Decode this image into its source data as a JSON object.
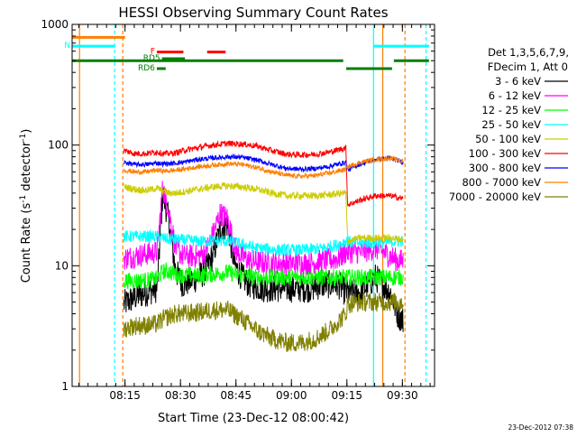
{
  "chart_data": {
    "type": "line",
    "title": "HESSI Observing Summary Count Rates",
    "xlabel": "Start Time (23-Dec-12 08:00:42)",
    "ylabel_main": "Count Rate (s",
    "ylabel_sup1": "-1",
    "ylabel_mid": " detector",
    "ylabel_sup2": "-1",
    "ylabel_end": ")",
    "y_scale": "log",
    "ylim": [
      1,
      1000
    ],
    "xlim_minutes": [
      0.0,
      98.0
    ],
    "x_ticks": [
      {
        "minute": 14.3,
        "label": "08:15"
      },
      {
        "minute": 29.3,
        "label": "08:30"
      },
      {
        "minute": 44.3,
        "label": "08:45"
      },
      {
        "minute": 59.3,
        "label": "09:00"
      },
      {
        "minute": 74.3,
        "label": "09:15"
      },
      {
        "minute": 89.3,
        "label": "09:30"
      }
    ],
    "y_ticks": [
      {
        "value": 1,
        "label": "1"
      },
      {
        "value": 10,
        "label": "10"
      },
      {
        "value": 100,
        "label": "100"
      },
      {
        "value": 1000,
        "label": "1000"
      }
    ],
    "legend": {
      "placement": "right",
      "header1": "Det 1,3,5,6,7,9,",
      "header2": "FDecim 1, Att 0"
    },
    "series": [
      {
        "name": "3 - 6 keV",
        "color": "#000000",
        "points": [
          [
            14,
            4.8
          ],
          [
            17,
            5.5
          ],
          [
            20,
            6.0
          ],
          [
            23,
            6.5
          ],
          [
            24.5,
            40
          ],
          [
            26,
            25
          ],
          [
            28,
            9
          ],
          [
            30,
            7
          ],
          [
            32,
            7.5
          ],
          [
            34,
            8
          ],
          [
            36,
            9
          ],
          [
            38,
            12
          ],
          [
            40,
            20
          ],
          [
            42,
            22
          ],
          [
            44,
            10
          ],
          [
            46,
            8
          ],
          [
            48,
            7
          ],
          [
            52,
            6.5
          ],
          [
            56,
            6.5
          ],
          [
            60,
            6.5
          ],
          [
            64,
            6.5
          ],
          [
            68,
            7
          ],
          [
            72,
            7
          ],
          [
            74,
            6
          ],
          [
            76,
            6
          ],
          [
            78,
            6
          ],
          [
            80,
            7
          ],
          [
            82,
            8
          ],
          [
            84,
            7
          ],
          [
            86,
            6
          ],
          [
            88,
            4
          ],
          [
            89.5,
            3.5
          ]
        ]
      },
      {
        "name": "6 - 12 keV",
        "color": "#ff00ff",
        "points": [
          [
            14,
            11.5
          ],
          [
            17,
            12
          ],
          [
            20,
            12.5
          ],
          [
            23,
            13
          ],
          [
            24.5,
            45
          ],
          [
            26,
            30
          ],
          [
            28,
            14
          ],
          [
            30,
            12
          ],
          [
            32,
            12
          ],
          [
            34,
            12
          ],
          [
            36,
            13
          ],
          [
            38,
            18
          ],
          [
            40,
            27
          ],
          [
            42,
            25
          ],
          [
            44,
            14
          ],
          [
            46,
            12
          ],
          [
            48,
            11
          ],
          [
            52,
            10.5
          ],
          [
            56,
            10.5
          ],
          [
            60,
            10.5
          ],
          [
            64,
            10.5
          ],
          [
            68,
            11
          ],
          [
            72,
            11.5
          ],
          [
            74,
            13
          ],
          [
            76,
            13
          ],
          [
            78,
            13
          ],
          [
            80,
            13.5
          ],
          [
            82,
            14
          ],
          [
            84,
            13
          ],
          [
            86,
            12
          ],
          [
            88,
            11
          ],
          [
            89.5,
            11
          ]
        ]
      },
      {
        "name": "12 - 25 keV",
        "color": "#00ff00",
        "points": [
          [
            14,
            7.5
          ],
          [
            17,
            7.5
          ],
          [
            20,
            7.6
          ],
          [
            23,
            7.8
          ],
          [
            24.5,
            9
          ],
          [
            26,
            9
          ],
          [
            28,
            8.5
          ],
          [
            30,
            8.3
          ],
          [
            34,
            8.3
          ],
          [
            38,
            8.5
          ],
          [
            42,
            8.8
          ],
          [
            46,
            8.3
          ],
          [
            50,
            8
          ],
          [
            56,
            8
          ],
          [
            62,
            8
          ],
          [
            68,
            8
          ],
          [
            72,
            8
          ],
          [
            74,
            8
          ],
          [
            78,
            8
          ],
          [
            82,
            8
          ],
          [
            86,
            8
          ],
          [
            89.5,
            8
          ]
        ]
      },
      {
        "name": "25 - 50 keV",
        "color": "#00ffff",
        "points": [
          [
            14,
            17.5
          ],
          [
            17,
            17.5
          ],
          [
            20,
            17.5
          ],
          [
            23,
            17.5
          ],
          [
            24.5,
            17
          ],
          [
            26,
            16.5
          ],
          [
            28,
            16.5
          ],
          [
            30,
            16.3
          ],
          [
            34,
            16
          ],
          [
            38,
            16
          ],
          [
            42,
            16
          ],
          [
            46,
            15
          ],
          [
            50,
            14
          ],
          [
            56,
            13.5
          ],
          [
            62,
            13.5
          ],
          [
            68,
            14
          ],
          [
            72,
            15
          ],
          [
            74,
            16
          ],
          [
            76,
            15.5
          ],
          [
            80,
            15.5
          ],
          [
            84,
            15.5
          ],
          [
            88,
            16
          ],
          [
            89.5,
            16
          ]
        ]
      },
      {
        "name": "50 - 100 keV",
        "color": "#cccc00",
        "points": [
          [
            14,
            45
          ],
          [
            17,
            43
          ],
          [
            20,
            42
          ],
          [
            23,
            44
          ],
          [
            24.5,
            42
          ],
          [
            26,
            40
          ],
          [
            28,
            40
          ],
          [
            30,
            41
          ],
          [
            34,
            43
          ],
          [
            38,
            45
          ],
          [
            42,
            46
          ],
          [
            46,
            45
          ],
          [
            50,
            43
          ],
          [
            54,
            40
          ],
          [
            58,
            38
          ],
          [
            62,
            38
          ],
          [
            66,
            38
          ],
          [
            70,
            39
          ],
          [
            74,
            40
          ],
          [
            74.5,
            16
          ],
          [
            78,
            17
          ],
          [
            82,
            17
          ],
          [
            86,
            17
          ],
          [
            89.5,
            16.5
          ]
        ]
      },
      {
        "name": "100 - 300 keV",
        "color": "#ff0000",
        "points": [
          [
            14,
            90
          ],
          [
            17,
            85
          ],
          [
            20,
            85
          ],
          [
            23,
            88
          ],
          [
            24.5,
            85
          ],
          [
            26,
            85
          ],
          [
            28,
            86
          ],
          [
            30,
            90
          ],
          [
            34,
            95
          ],
          [
            38,
            100
          ],
          [
            42,
            103
          ],
          [
            46,
            102
          ],
          [
            50,
            98
          ],
          [
            54,
            90
          ],
          [
            58,
            84
          ],
          [
            62,
            83
          ],
          [
            66,
            84
          ],
          [
            70,
            88
          ],
          [
            74,
            95
          ],
          [
            74.5,
            32
          ],
          [
            78,
            35
          ],
          [
            82,
            38
          ],
          [
            86,
            38
          ],
          [
            89.5,
            36
          ]
        ]
      },
      {
        "name": "300 - 800 keV",
        "color": "#0000ff",
        "points": [
          [
            14,
            72
          ],
          [
            17,
            69
          ],
          [
            20,
            69
          ],
          [
            23,
            71
          ],
          [
            24.5,
            70
          ],
          [
            26,
            70
          ],
          [
            28,
            71
          ],
          [
            30,
            72
          ],
          [
            34,
            76
          ],
          [
            38,
            78
          ],
          [
            42,
            80
          ],
          [
            46,
            79
          ],
          [
            50,
            75
          ],
          [
            54,
            69
          ],
          [
            58,
            64
          ],
          [
            62,
            63
          ],
          [
            66,
            64
          ],
          [
            70,
            67
          ],
          [
            74,
            72
          ],
          [
            74.5,
            62
          ],
          [
            78,
            70
          ],
          [
            82,
            76
          ],
          [
            86,
            78
          ],
          [
            89.5,
            72
          ]
        ]
      },
      {
        "name": "800 - 7000 keV",
        "color": "#ff7f00",
        "points": [
          [
            14,
            62
          ],
          [
            17,
            60
          ],
          [
            20,
            60
          ],
          [
            23,
            62
          ],
          [
            24.5,
            61
          ],
          [
            26,
            61
          ],
          [
            28,
            62
          ],
          [
            30,
            63
          ],
          [
            34,
            66
          ],
          [
            38,
            68
          ],
          [
            42,
            70
          ],
          [
            46,
            69
          ],
          [
            50,
            65
          ],
          [
            54,
            60
          ],
          [
            58,
            56
          ],
          [
            62,
            55
          ],
          [
            66,
            56
          ],
          [
            70,
            59
          ],
          [
            74,
            63
          ],
          [
            74.5,
            66
          ],
          [
            78,
            72
          ],
          [
            82,
            76
          ],
          [
            86,
            78
          ],
          [
            89.5,
            73
          ]
        ]
      },
      {
        "name": "7000 - 20000 keV",
        "color": "#808000",
        "points": [
          [
            14,
            3.0
          ],
          [
            17,
            3.2
          ],
          [
            20,
            3.2
          ],
          [
            23,
            3.3
          ],
          [
            24.5,
            3.6
          ],
          [
            26,
            3.8
          ],
          [
            28,
            4.0
          ],
          [
            30,
            4.0
          ],
          [
            34,
            4.1
          ],
          [
            38,
            4.3
          ],
          [
            42,
            4.3
          ],
          [
            46,
            3.6
          ],
          [
            50,
            2.9
          ],
          [
            54,
            2.5
          ],
          [
            58,
            2.3
          ],
          [
            62,
            2.3
          ],
          [
            66,
            2.5
          ],
          [
            70,
            3.0
          ],
          [
            74,
            4.0
          ],
          [
            74.5,
            4.8
          ],
          [
            78,
            5.0
          ],
          [
            82,
            5.0
          ],
          [
            86,
            5.0
          ],
          [
            89.5,
            5.0
          ]
        ]
      }
    ],
    "flags": [
      {
        "label": "",
        "color": "#ff7f00",
        "y_value": 780,
        "ranges": [
          [
            0,
            14.3
          ]
        ]
      },
      {
        "label": "N",
        "color": "#00ffff",
        "y_value": 660,
        "ranges": [
          [
            0,
            11.5
          ],
          [
            81.5,
            96.5
          ]
        ]
      },
      {
        "label": "",
        "color": "#008000",
        "y_value": 500,
        "ranges": [
          [
            0,
            73.3
          ],
          [
            87,
            96.5
          ]
        ]
      },
      {
        "label": "F",
        "color": "#ff0000",
        "y_value": 590,
        "ranges": [
          [
            22.9,
            30.1
          ],
          [
            36.5,
            41.5
          ]
        ]
      },
      {
        "label": "RD5",
        "color": "#008000",
        "y_value": 520,
        "ranges": [
          [
            24.3,
            30.5
          ]
        ]
      },
      {
        "label": "RD6",
        "color": "#008000",
        "y_value": 430,
        "ranges": [
          [
            22.9,
            25.3
          ],
          [
            74.1,
            86.5
          ]
        ]
      }
    ],
    "verticals": [
      {
        "minute": 2.0,
        "color": "#ff7f00",
        "style": "solid"
      },
      {
        "minute": 11.5,
        "color": "#00ffff",
        "style": "dashed"
      },
      {
        "minute": 13.7,
        "color": "#ff7f00",
        "style": "dashed"
      },
      {
        "minute": 81.5,
        "color": "#00ffff",
        "style": "solid"
      },
      {
        "minute": 84.0,
        "color": "#ff7f00",
        "style": "solid"
      },
      {
        "minute": 90.0,
        "color": "#ff7f00",
        "style": "dashed"
      },
      {
        "minute": 95.7,
        "color": "#00ffff",
        "style": "dashed"
      }
    ],
    "plot_date": "23-Dec-2012 07:38",
    "grid": false
  }
}
